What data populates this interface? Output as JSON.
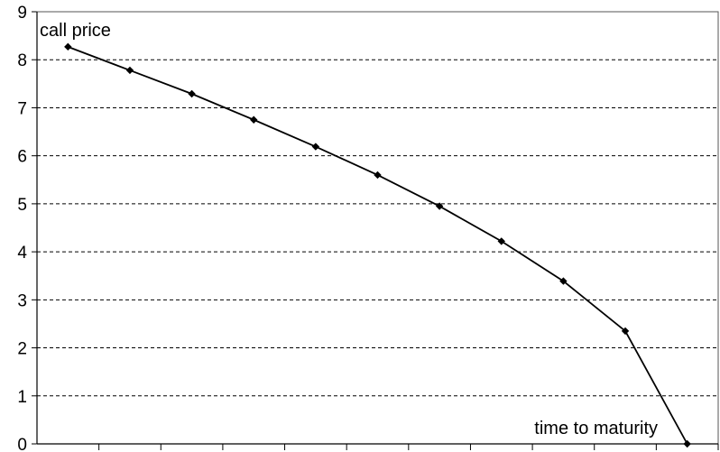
{
  "chart_data": {
    "type": "line",
    "ylabel": "call price",
    "xlabel": "time to maturity",
    "ylim": [
      0,
      9
    ],
    "yticks": [
      0,
      1,
      2,
      3,
      4,
      5,
      6,
      7,
      8,
      9
    ],
    "grid": "horizontal dashed",
    "x": [
      1,
      2,
      3,
      4,
      5,
      6,
      7,
      8,
      9,
      10,
      11
    ],
    "series": [
      {
        "values": [
          8.27,
          7.78,
          7.29,
          6.75,
          6.19,
          5.6,
          4.95,
          4.22,
          3.39,
          2.35,
          0
        ]
      }
    ]
  }
}
